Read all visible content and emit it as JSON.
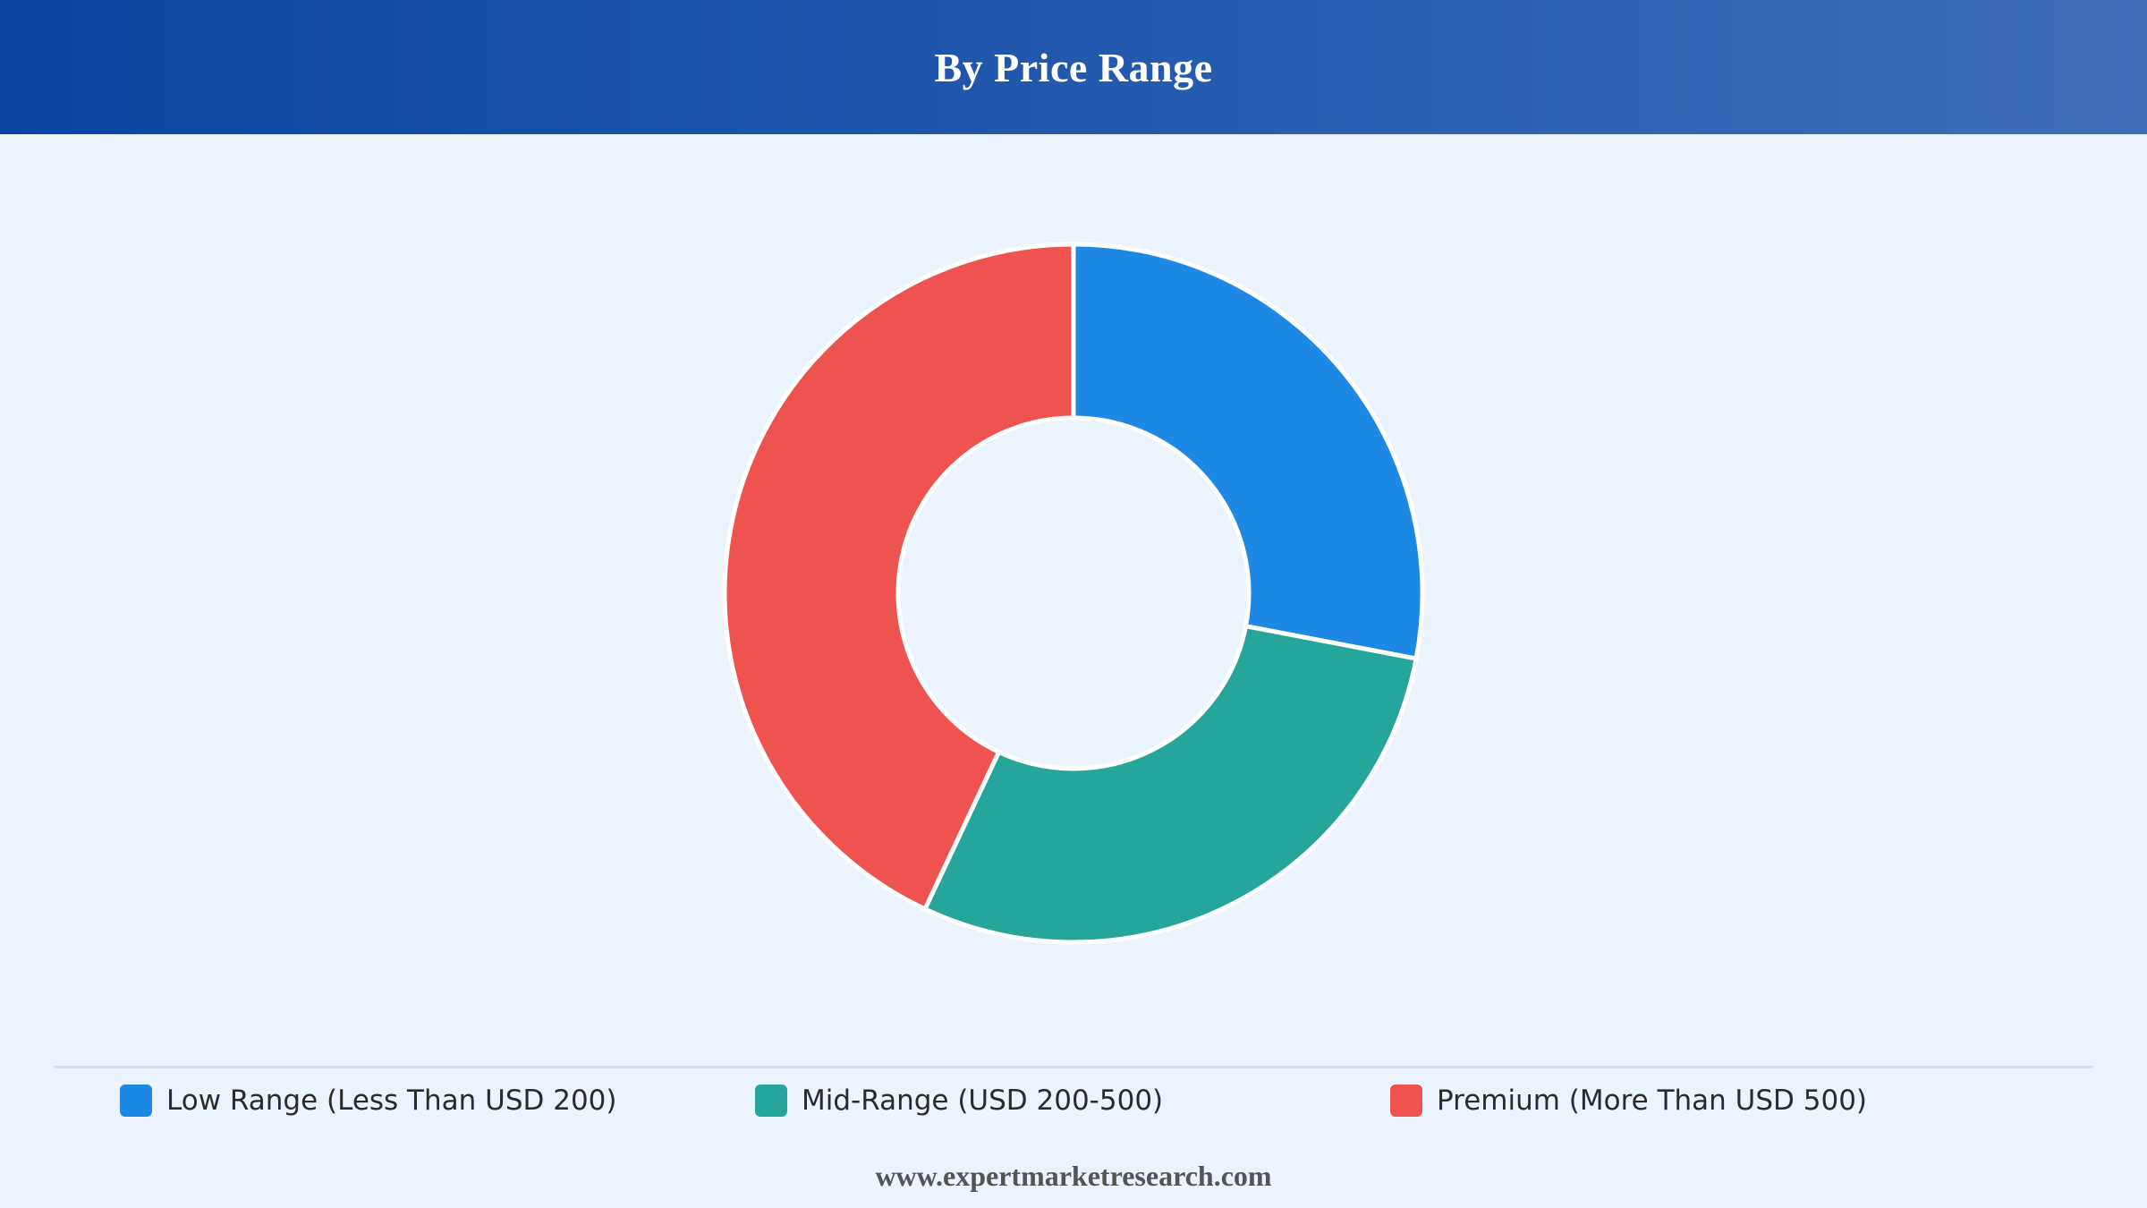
{
  "header": {
    "title": "By Price Range"
  },
  "chart_data": {
    "type": "pie",
    "donut": true,
    "title": "By Price Range",
    "categories": [
      "Low Range (Less Than USD 200)",
      "Mid-Range (USD 200-500)",
      "Premium (More Than USD 500)"
    ],
    "values": [
      28,
      29,
      43
    ],
    "colors": [
      "#1e88e5",
      "#26a69a",
      "#ef5350"
    ],
    "legend_position": "bottom"
  },
  "legend": {
    "items": [
      {
        "label": "Low Range (Less Than USD 200)",
        "color": "#1e88e5"
      },
      {
        "label": "Mid-Range (USD 200-500)",
        "color": "#26a69a"
      },
      {
        "label": "Premium (More Than USD 500)",
        "color": "#ef5350"
      }
    ]
  },
  "footer": {
    "text": "www.expertmarketresearch.com"
  }
}
